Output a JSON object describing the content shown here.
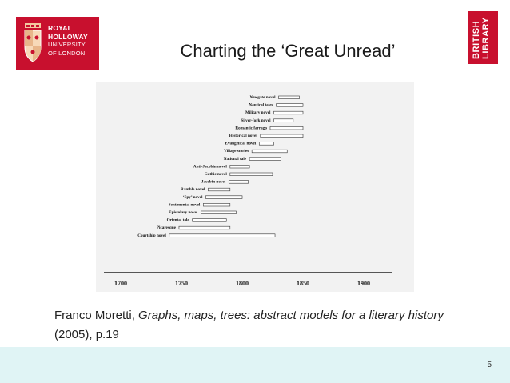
{
  "header": {
    "title": "Charting the ‘Great Unread’",
    "rhul_logo": {
      "line1": "ROYAL",
      "line2": "HOLLOWAY",
      "line3": "UNIVERSITY",
      "line4": "OF LONDON"
    },
    "bl_logo": {
      "line1": "BRITISH",
      "line2": "LIBRARY"
    }
  },
  "chart_data": {
    "type": "bar",
    "orientation": "horizontal-range",
    "title": "",
    "xlabel": "",
    "ylabel": "",
    "xlim": [
      1675,
      1925
    ],
    "x_ticks": [
      "1700",
      "1750",
      "1800",
      "1850",
      "1900"
    ],
    "categories": [
      "Courtship novel",
      "Picaresque",
      "Oriental tale",
      "Epistolary novel",
      "Sentimental novel",
      "‘Spy’ novel",
      "Ramble novel",
      "Jacobin novel",
      "Gothic novel",
      "Anti-Jacobin novel",
      "National tale",
      "Village stories",
      "Evangelical novel",
      "Historical novel",
      "Romantic farrago",
      "Silver-fork novel",
      "Military novel",
      "Nautical tales",
      "Newgate novel"
    ],
    "ranges": [
      [
        1740,
        1827
      ],
      [
        1748,
        1790
      ],
      [
        1759,
        1787
      ],
      [
        1766,
        1795
      ],
      [
        1768,
        1790
      ],
      [
        1770,
        1800
      ],
      [
        1772,
        1790
      ],
      [
        1789,
        1805
      ],
      [
        1790,
        1825
      ],
      [
        1790,
        1806
      ],
      [
        1806,
        1832
      ],
      [
        1808,
        1837
      ],
      [
        1814,
        1826
      ],
      [
        1815,
        1850
      ],
      [
        1823,
        1850
      ],
      [
        1826,
        1842
      ],
      [
        1826,
        1850
      ],
      [
        1828,
        1850
      ],
      [
        1830,
        1847
      ]
    ]
  },
  "caption": {
    "author": "Franco Moretti, ",
    "work": "Graphs, maps, trees: abstract models for a literary history",
    "rest": " (2005), p.19"
  },
  "footer": {
    "page_number": "5"
  }
}
